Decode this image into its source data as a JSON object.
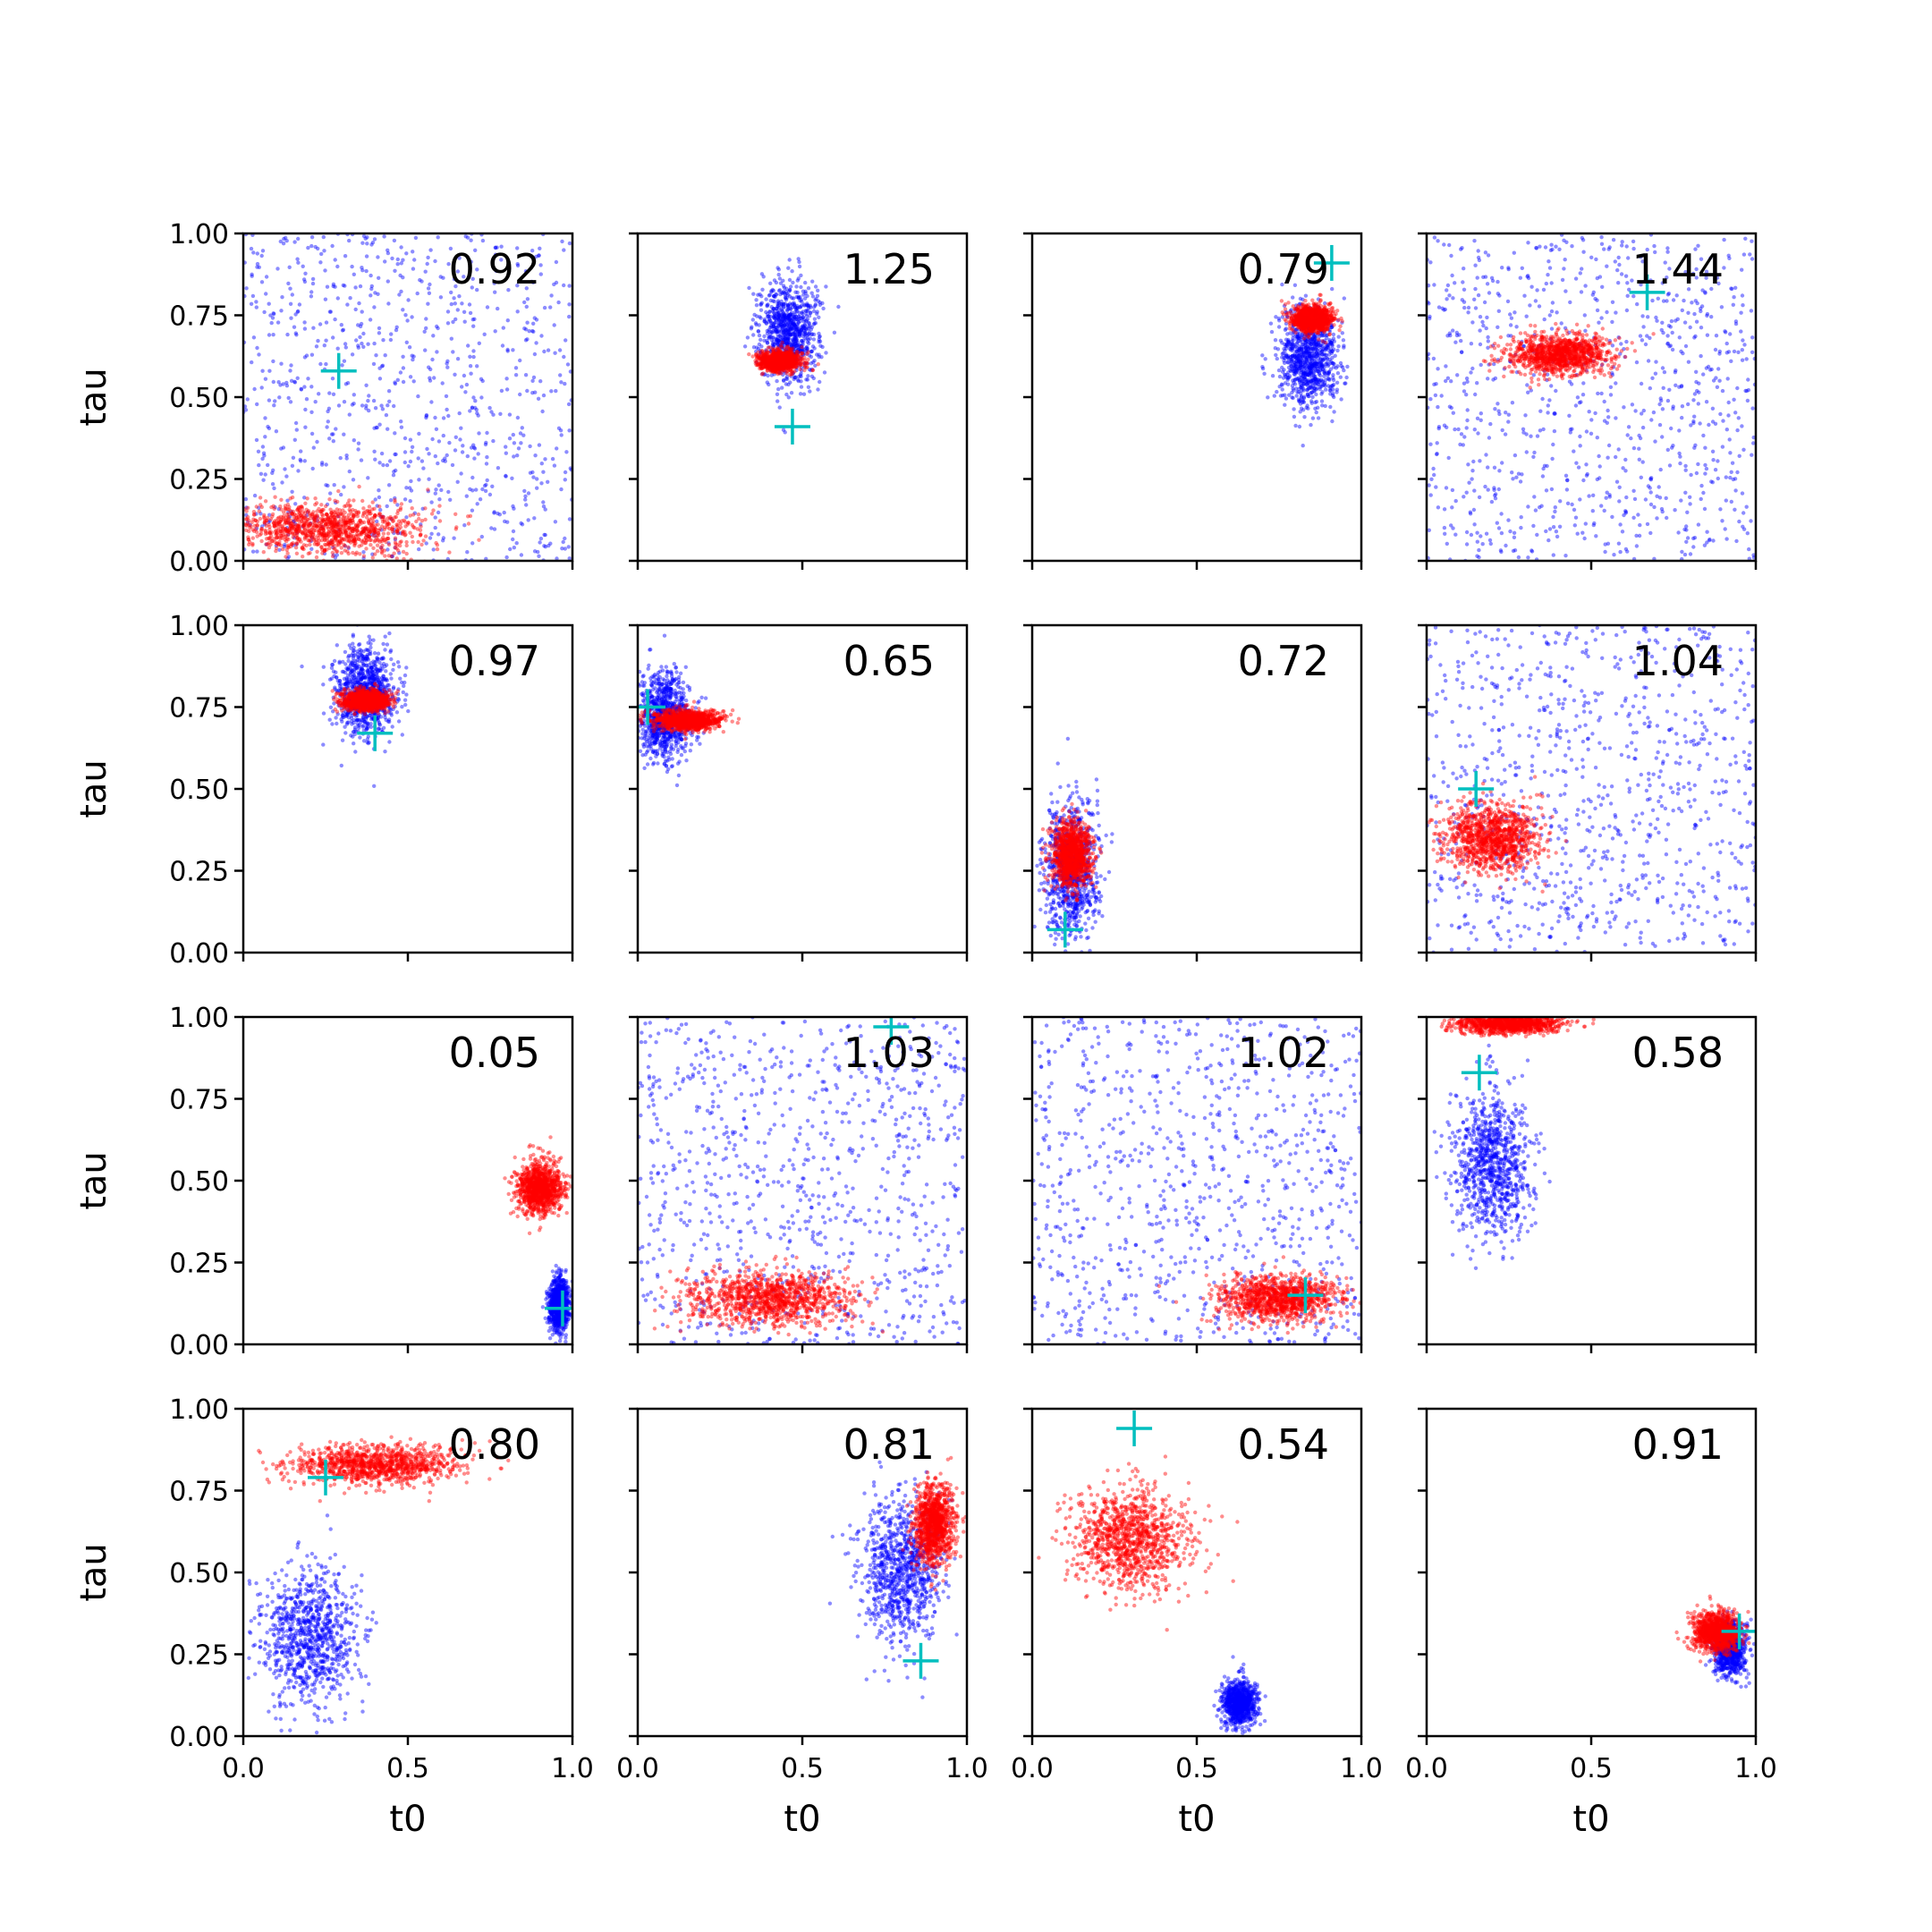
{
  "figure": {
    "xlabel": "t0",
    "ylabel": "tau",
    "xticks": [
      "0.0",
      "0.5",
      "1.0"
    ],
    "yticks": [
      "0.00",
      "0.25",
      "0.50",
      "0.75",
      "1.00"
    ],
    "colors": {
      "prior": "#0000ff",
      "posterior": "#ff0000",
      "truth": "#00bfbf"
    }
  },
  "chart_data": [
    {
      "type": "scatter",
      "annotation": "0.92",
      "xlim": [
        0,
        1
      ],
      "ylim": [
        0,
        1
      ],
      "grid": false,
      "truth": {
        "t0": 0.29,
        "tau": 0.58
      },
      "posterior": {
        "t0_center": 0.25,
        "t0_spread": 0.28,
        "tau_center": 0.1,
        "tau_spread": 0.08
      },
      "prior": {
        "t0_center": 0.5,
        "t0_spread": 0.6,
        "tau_center": 0.5,
        "tau_spread": 0.6,
        "uniform": true
      }
    },
    {
      "type": "scatter",
      "annotation": "1.25",
      "xlim": [
        0,
        1
      ],
      "ylim": [
        0,
        1
      ],
      "grid": false,
      "truth": {
        "t0": 0.47,
        "tau": 0.41
      },
      "posterior": {
        "t0_center": 0.43,
        "t0_spread": 0.06,
        "tau_center": 0.61,
        "tau_spread": 0.03
      },
      "prior": {
        "t0_center": 0.46,
        "t0_spread": 0.09,
        "tau_center": 0.7,
        "tau_spread": 0.15
      }
    },
    {
      "type": "scatter",
      "annotation": "0.79",
      "xlim": [
        0,
        1
      ],
      "ylim": [
        0,
        1
      ],
      "grid": false,
      "truth": {
        "t0": 0.91,
        "tau": 0.91
      },
      "posterior": {
        "t0_center": 0.85,
        "t0_spread": 0.06,
        "tau_center": 0.74,
        "tau_spread": 0.04
      },
      "prior": {
        "t0_center": 0.84,
        "t0_spread": 0.09,
        "tau_center": 0.62,
        "tau_spread": 0.15
      }
    },
    {
      "type": "scatter",
      "annotation": "1.44",
      "xlim": [
        0,
        1
      ],
      "ylim": [
        0,
        1
      ],
      "grid": false,
      "truth": {
        "t0": 0.67,
        "tau": 0.82
      },
      "posterior": {
        "t0_center": 0.4,
        "t0_spread": 0.15,
        "tau_center": 0.63,
        "tau_spread": 0.06
      },
      "prior": {
        "t0_center": 0.5,
        "t0_spread": 0.6,
        "tau_center": 0.5,
        "tau_spread": 0.6,
        "uniform": true
      }
    },
    {
      "type": "scatter",
      "annotation": "0.97",
      "xlim": [
        0,
        1
      ],
      "ylim": [
        0,
        1
      ],
      "grid": false,
      "truth": {
        "t0": 0.4,
        "tau": 0.67
      },
      "posterior": {
        "t0_center": 0.37,
        "t0_spread": 0.07,
        "tau_center": 0.77,
        "tau_spread": 0.03
      },
      "prior": {
        "t0_center": 0.37,
        "t0_spread": 0.09,
        "tau_center": 0.8,
        "tau_spread": 0.13
      }
    },
    {
      "type": "scatter",
      "annotation": "0.65",
      "xlim": [
        0,
        1
      ],
      "ylim": [
        0,
        1
      ],
      "grid": false,
      "truth": {
        "t0": 0.03,
        "tau": 0.75
      },
      "posterior": {
        "t0_center": 0.15,
        "t0_spread": 0.1,
        "tau_center": 0.71,
        "tau_spread": 0.03
      },
      "prior": {
        "t0_center": 0.08,
        "t0_spread": 0.08,
        "tau_center": 0.72,
        "tau_spread": 0.13
      }
    },
    {
      "type": "scatter",
      "annotation": "0.72",
      "xlim": [
        0,
        1
      ],
      "ylim": [
        0,
        1
      ],
      "grid": false,
      "truth": {
        "t0": 0.1,
        "tau": 0.07
      },
      "posterior": {
        "t0_center": 0.12,
        "t0_spread": 0.06,
        "tau_center": 0.3,
        "tau_spread": 0.1
      },
      "prior": {
        "t0_center": 0.12,
        "t0_spread": 0.08,
        "tau_center": 0.25,
        "tau_spread": 0.2
      }
    },
    {
      "type": "scatter",
      "annotation": "1.04",
      "xlim": [
        0,
        1
      ],
      "ylim": [
        0,
        1
      ],
      "grid": false,
      "truth": {
        "t0": 0.15,
        "tau": 0.5
      },
      "posterior": {
        "t0_center": 0.2,
        "t0_spread": 0.15,
        "tau_center": 0.35,
        "tau_spread": 0.1
      },
      "prior": {
        "t0_center": 0.5,
        "t0_spread": 0.6,
        "tau_center": 0.5,
        "tau_spread": 0.6,
        "uniform": true
      }
    },
    {
      "type": "scatter",
      "annotation": "0.05",
      "xlim": [
        0,
        1
      ],
      "ylim": [
        0,
        1
      ],
      "grid": false,
      "truth": {
        "t0": 0.97,
        "tau": 0.11
      },
      "posterior": {
        "t0_center": 0.9,
        "t0_spread": 0.07,
        "tau_center": 0.48,
        "tau_spread": 0.08
      },
      "prior": {
        "t0_center": 0.96,
        "t0_spread": 0.03,
        "tau_center": 0.12,
        "tau_spread": 0.08
      }
    },
    {
      "type": "scatter",
      "annotation": "1.03",
      "xlim": [
        0,
        1
      ],
      "ylim": [
        0,
        1
      ],
      "grid": false,
      "truth": {
        "t0": 0.77,
        "tau": 0.97
      },
      "posterior": {
        "t0_center": 0.4,
        "t0_spread": 0.25,
        "tau_center": 0.14,
        "tau_spread": 0.08
      },
      "prior": {
        "t0_center": 0.5,
        "t0_spread": 0.6,
        "tau_center": 0.5,
        "tau_spread": 0.6,
        "uniform": true
      }
    },
    {
      "type": "scatter",
      "annotation": "1.02",
      "xlim": [
        0,
        1
      ],
      "ylim": [
        0,
        1
      ],
      "grid": false,
      "truth": {
        "t0": 0.83,
        "tau": 0.15
      },
      "posterior": {
        "t0_center": 0.75,
        "t0_spread": 0.18,
        "tau_center": 0.14,
        "tau_spread": 0.07
      },
      "prior": {
        "t0_center": 0.5,
        "t0_spread": 0.6,
        "tau_center": 0.5,
        "tau_spread": 0.6,
        "uniform": true
      }
    },
    {
      "type": "scatter",
      "annotation": "0.58",
      "xlim": [
        0,
        1
      ],
      "ylim": [
        0,
        1
      ],
      "grid": false,
      "truth": {
        "t0": 0.16,
        "tau": 0.83
      },
      "posterior": {
        "t0_center": 0.25,
        "t0_spread": 0.15,
        "tau_center": 0.98,
        "tau_spread": 0.03
      },
      "prior": {
        "t0_center": 0.2,
        "t0_spread": 0.12,
        "tau_center": 0.55,
        "tau_spread": 0.22
      }
    },
    {
      "type": "scatter",
      "annotation": "0.80",
      "xlim": [
        0,
        1
      ],
      "ylim": [
        0,
        1
      ],
      "grid": false,
      "truth": {
        "t0": 0.25,
        "tau": 0.79
      },
      "posterior": {
        "t0_center": 0.4,
        "t0_spread": 0.25,
        "tau_center": 0.83,
        "tau_spread": 0.06
      },
      "prior": {
        "t0_center": 0.2,
        "t0_spread": 0.15,
        "tau_center": 0.3,
        "tau_spread": 0.2
      }
    },
    {
      "type": "scatter",
      "annotation": "0.81",
      "xlim": [
        0,
        1
      ],
      "ylim": [
        0,
        1
      ],
      "grid": false,
      "truth": {
        "t0": 0.86,
        "tau": 0.23
      },
      "posterior": {
        "t0_center": 0.9,
        "t0_spread": 0.06,
        "tau_center": 0.65,
        "tau_spread": 0.12
      },
      "prior": {
        "t0_center": 0.8,
        "t0_spread": 0.12,
        "tau_center": 0.5,
        "tau_spread": 0.22
      }
    },
    {
      "type": "scatter",
      "annotation": "0.54",
      "xlim": [
        0,
        1
      ],
      "ylim": [
        0,
        1
      ],
      "grid": false,
      "truth": {
        "t0": 0.31,
        "tau": 0.94
      },
      "posterior": {
        "t0_center": 0.3,
        "t0_spread": 0.18,
        "tau_center": 0.6,
        "tau_spread": 0.15
      },
      "prior": {
        "t0_center": 0.63,
        "t0_spread": 0.05,
        "tau_center": 0.1,
        "tau_spread": 0.07
      }
    },
    {
      "type": "scatter",
      "annotation": "0.91",
      "xlim": [
        0,
        1
      ],
      "ylim": [
        0,
        1
      ],
      "grid": false,
      "truth": {
        "t0": 0.95,
        "tau": 0.32
      },
      "posterior": {
        "t0_center": 0.88,
        "t0_spread": 0.07,
        "tau_center": 0.32,
        "tau_spread": 0.06
      },
      "prior": {
        "t0_center": 0.92,
        "t0_spread": 0.05,
        "tau_center": 0.27,
        "tau_spread": 0.08
      }
    }
  ]
}
